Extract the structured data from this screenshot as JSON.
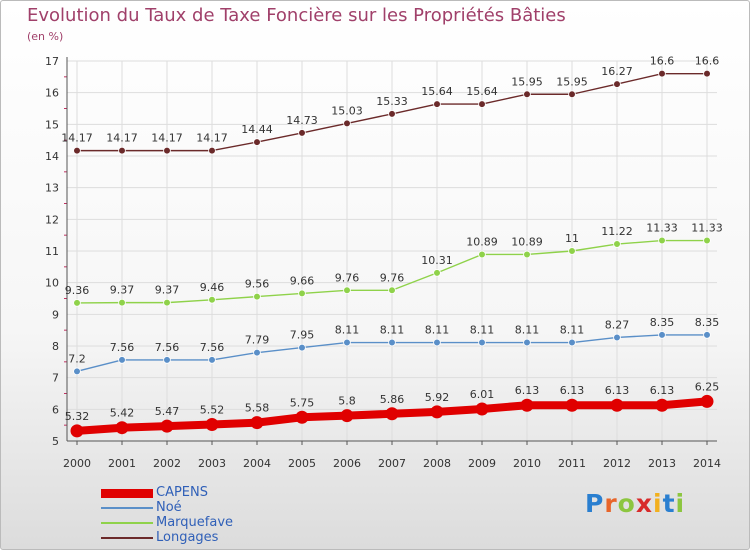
{
  "header": {
    "title": "Evolution du Taux de Taxe Foncière sur les Propriétés Bâties",
    "subtitle": "(en %)"
  },
  "logo": {
    "text": "Proxiti",
    "letter_colors": [
      "#2a7fd0",
      "#e8652a",
      "#8cc63f",
      "#d82b2b",
      "#f2b01e",
      "#2a7fd0",
      "#8cc63f"
    ]
  },
  "chart_data": {
    "type": "line",
    "title": "Evolution du Taux de Taxe Foncière sur les Propriétés Bâties",
    "ylabel": "(en %)",
    "xlabel": "",
    "x": [
      "2000",
      "2001",
      "2002",
      "2003",
      "2004",
      "2005",
      "2006",
      "2007",
      "2008",
      "2009",
      "2010",
      "2011",
      "2012",
      "2013",
      "2014"
    ],
    "ylim": [
      5,
      17
    ],
    "yticks": [
      "5",
      "6",
      "7",
      "8",
      "9",
      "10",
      "11",
      "12",
      "13",
      "14",
      "15",
      "16",
      "17"
    ],
    "grid": true,
    "legend_placement": "bottom-left",
    "series": [
      {
        "name": "CAPENS",
        "color": "#e00000",
        "values": [
          5.32,
          5.42,
          5.47,
          5.52,
          5.58,
          5.75,
          5.8,
          5.86,
          5.92,
          6.01,
          6.13,
          6.13,
          6.13,
          6.13,
          6.25
        ],
        "labels": [
          "5.32",
          "5.42",
          "5.47",
          "5.52",
          "5.58",
          "5.75",
          "5.8",
          "5.86",
          "5.92",
          "6.01",
          "6.13",
          "6.13",
          "6.13",
          "6.13",
          "6.25"
        ]
      },
      {
        "name": "Noé",
        "color": "#5a8fc8",
        "values": [
          7.2,
          7.56,
          7.56,
          7.56,
          7.79,
          7.95,
          8.11,
          8.11,
          8.11,
          8.11,
          8.11,
          8.11,
          8.27,
          8.35,
          8.35
        ],
        "labels": [
          "7.2",
          "7.56",
          "7.56",
          "7.56",
          "7.79",
          "7.95",
          "8.11",
          "8.11",
          "8.11",
          "8.11",
          "8.11",
          "8.11",
          "8.27",
          "8.35",
          "8.35"
        ]
      },
      {
        "name": "Marquefave",
        "color": "#8fd24a",
        "values": [
          9.36,
          9.37,
          9.37,
          9.46,
          9.56,
          9.66,
          9.76,
          9.76,
          10.31,
          10.89,
          10.89,
          11,
          11.22,
          11.33,
          11.33
        ],
        "labels": [
          "9.36",
          "9.37",
          "9.37",
          "9.46",
          "9.56",
          "9.66",
          "9.76",
          "9.76",
          "10.31",
          "10.89",
          "10.89",
          "11",
          "11.22",
          "11.33",
          "11.33"
        ]
      },
      {
        "name": "Longages",
        "color": "#6b2a2a",
        "values": [
          14.17,
          14.17,
          14.17,
          14.17,
          14.44,
          14.73,
          15.03,
          15.33,
          15.64,
          15.64,
          15.95,
          15.95,
          16.27,
          16.6,
          16.6
        ],
        "labels": [
          "14.17",
          "14.17",
          "14.17",
          "14.17",
          "14.44",
          "14.73",
          "15.03",
          "15.33",
          "15.64",
          "15.64",
          "15.95",
          "15.95",
          "16.27",
          "16.6",
          "16.6"
        ]
      }
    ]
  }
}
